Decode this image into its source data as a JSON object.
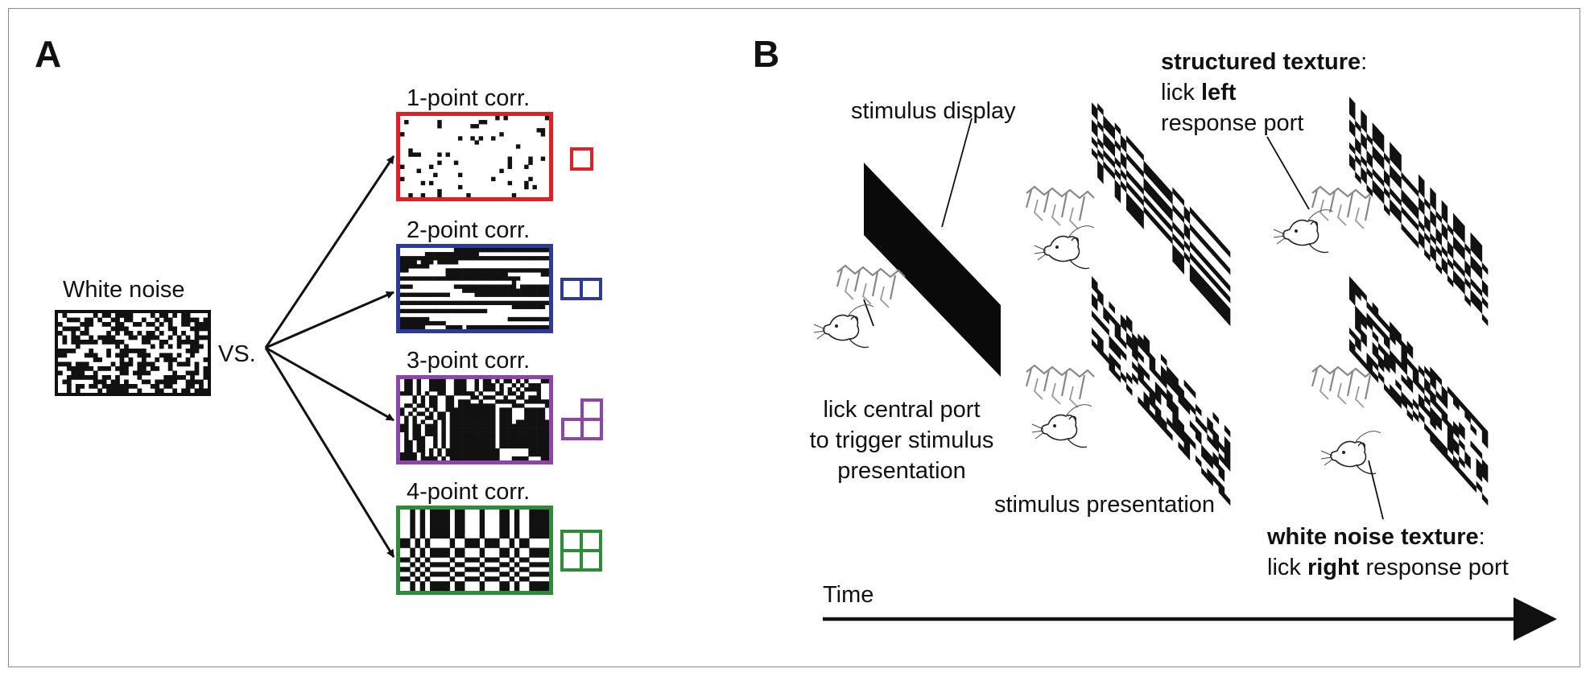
{
  "panel_a": {
    "label": "A",
    "source": {
      "title": "White noise"
    },
    "vs": "VS.",
    "textures": [
      {
        "title": "1-point corr.",
        "color": "#e31f26",
        "icon": "single-square-icon"
      },
      {
        "title": "2-point corr.",
        "color": "#2e3a97",
        "icon": "two-squares-icon"
      },
      {
        "title": "3-point corr.",
        "color": "#8e44a8",
        "icon": "three-squares-icon"
      },
      {
        "title": "4-point corr.",
        "color": "#2e8b3a",
        "icon": "four-squares-icon"
      }
    ]
  },
  "panel_b": {
    "label": "B",
    "stimulus_display": "stimulus display",
    "central_port_line1": "lick central port",
    "central_port_line2": "to trigger stimulus",
    "central_port_line3": "presentation",
    "stimulus_presentation": "stimulus presentation",
    "structured": {
      "bold": "structured texture",
      "colon": ":",
      "line2_pre": "lick ",
      "line2_bold": "left",
      "line3": "response port"
    },
    "white_noise": {
      "bold": "white noise texture",
      "colon": ":",
      "line2_pre": "lick ",
      "line2_bold": "right",
      "line2_post": " response port"
    },
    "time_label": "Time"
  }
}
